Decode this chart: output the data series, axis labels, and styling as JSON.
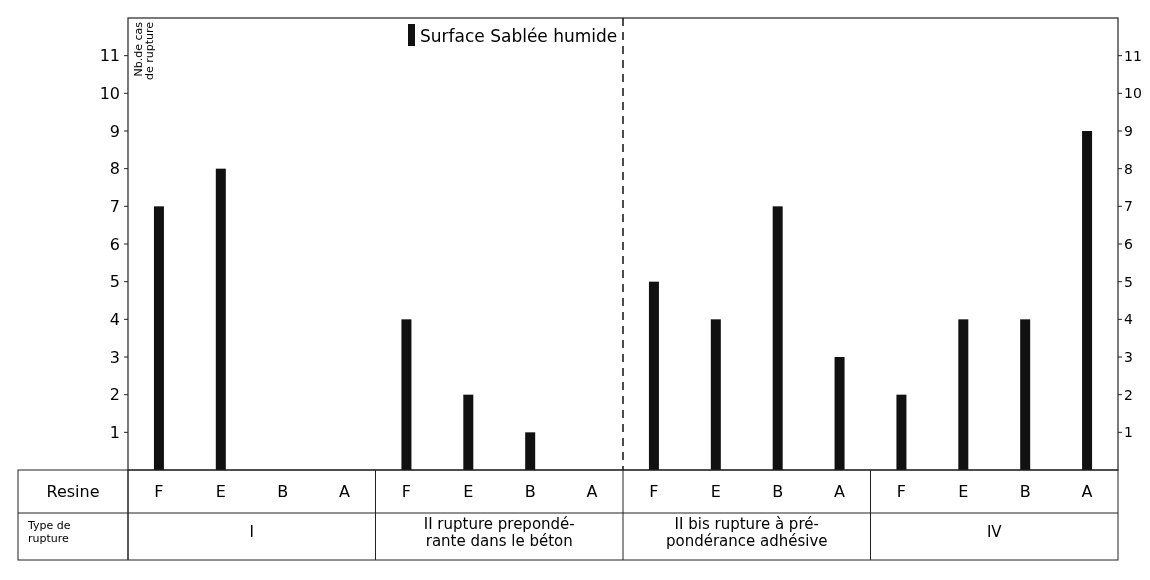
{
  "chart_data": {
    "type": "bar",
    "ylabel": "Nb.de cas\nde rupture",
    "xlabel": "Resine",
    "categories": [
      "F",
      "E",
      "B",
      "A",
      "F",
      "E",
      "B",
      "A",
      "F",
      "E",
      "B",
      "A",
      "F",
      "E",
      "B",
      "A"
    ],
    "series": [
      {
        "name": "Surface Sablée humide",
        "color": "#111111",
        "values": [
          7,
          8,
          0,
          0,
          4,
          2,
          1,
          0,
          5,
          4,
          7,
          3,
          2,
          4,
          4,
          9
        ]
      }
    ],
    "ylim": [
      0,
      12
    ],
    "yticks": [
      1,
      2,
      3,
      4,
      5,
      6,
      7,
      8,
      9,
      10,
      11
    ],
    "y2lim": [
      0,
      12
    ],
    "y2ticks": [
      1,
      2,
      3,
      4,
      5,
      6,
      7,
      8,
      9,
      10,
      11
    ],
    "annotations": [
      "Type de\nrupture",
      "I",
      "II rupture prepondé-\nrante dans le béton",
      "II bis rupture à pré-\npondérance adhésive",
      "IV"
    ],
    "legend": "top",
    "grid": false
  }
}
